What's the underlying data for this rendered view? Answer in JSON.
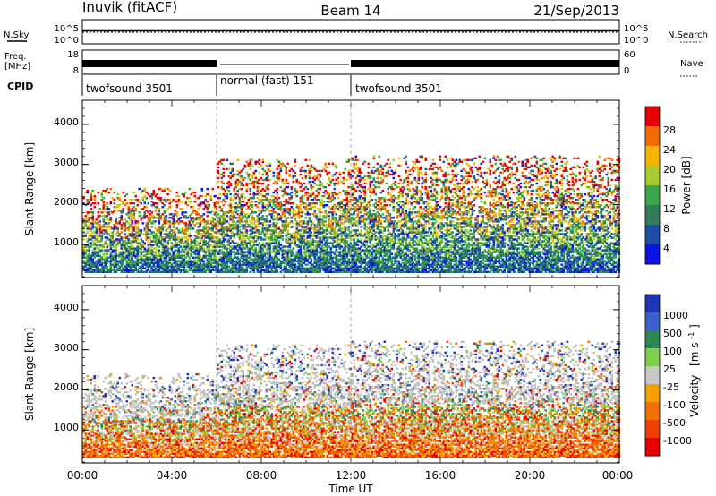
{
  "header": {
    "station": "Inuvik (fitACF)",
    "beam": "Beam 14",
    "date": "21/Sep/2013"
  },
  "summary_panel": {
    "nsky_label": "N.Sky",
    "nsearch_label": "N.Search",
    "noise_ticks": [
      "10^5",
      "10^0"
    ],
    "freq_label": "Freq.",
    "freq_unit": "[MHz]",
    "freq_ticks": [
      "18",
      "8"
    ],
    "nave_label": "Nave",
    "nave_ticks": [
      "60",
      "0"
    ],
    "cpid_label": "CPID",
    "cpid_segments": [
      {
        "label": "twofsound 3501",
        "start_hour": 0.0,
        "end_hour": 6.0
      },
      {
        "label": "normal (fast) 151",
        "start_hour": 6.0,
        "end_hour": 12.0
      },
      {
        "label": "twofsound 3501",
        "start_hour": 12.0,
        "end_hour": 24.0
      }
    ]
  },
  "chart_data": [
    {
      "type": "heatmap",
      "title": "",
      "quantity": "Power",
      "ylabel": "Slant Range [km]",
      "xlabel": "",
      "xlim": [
        0,
        24
      ],
      "ylim": [
        180,
        4600
      ],
      "yticks": [
        1000,
        2000,
        3000,
        4000
      ],
      "colorbar_label": "Power [dB]",
      "colorbar_ticks": [
        "28",
        "24",
        "20",
        "16",
        "12",
        "8",
        "4"
      ],
      "colorbar_colors": [
        "#e80000",
        "#f56a00",
        "#f5b400",
        "#a6cc30",
        "#38a848",
        "#2e7c5a",
        "#1d4fa8",
        "#0a14e6"
      ],
      "echo_regions_km": [
        {
          "start_hour": 0.0,
          "end_hour": 6.0,
          "min_km": 300,
          "max_km": 2400,
          "peak_dB": 28
        },
        {
          "start_hour": 6.0,
          "end_hour": 12.0,
          "min_km": 300,
          "max_km": 3100,
          "peak_dB": 28
        },
        {
          "start_hour": 12.0,
          "end_hour": 24.0,
          "min_km": 300,
          "max_km": 3200,
          "peak_dB": 28
        }
      ]
    },
    {
      "type": "heatmap",
      "title": "",
      "quantity": "Velocity",
      "ylabel": "Slant Range [km]",
      "xlabel": "Time UT",
      "xlim": [
        0,
        24
      ],
      "ylim": [
        180,
        4600
      ],
      "yticks": [
        1000,
        2000,
        3000,
        4000
      ],
      "xticks": [
        "00:00",
        "04:00",
        "08:00",
        "12:00",
        "16:00",
        "20:00",
        "00:00"
      ],
      "colorbar_label_main": "Velocity",
      "colorbar_label_unit": "[m s",
      "colorbar_label_exp": "-1",
      "colorbar_label_close": "]",
      "colorbar_ticks": [
        "1000",
        "500",
        "100",
        "25",
        "-25",
        "-100",
        "-500",
        "-1000"
      ],
      "colorbar_colors": [
        "#1e36b4",
        "#3a62c8",
        "#2a8a52",
        "#7ecf4a",
        "#c8c8c8",
        "#f5a000",
        "#f07000",
        "#f04000",
        "#e80000"
      ],
      "ground_scatter_color": "#c0c0c0",
      "echo_regions_km": [
        {
          "start_hour": 0.0,
          "end_hour": 6.0,
          "min_km": 300,
          "max_km": 2400
        },
        {
          "start_hour": 6.0,
          "end_hour": 12.0,
          "min_km": 300,
          "max_km": 3100
        },
        {
          "start_hour": 12.0,
          "end_hour": 24.0,
          "min_km": 300,
          "max_km": 3200
        }
      ]
    }
  ]
}
